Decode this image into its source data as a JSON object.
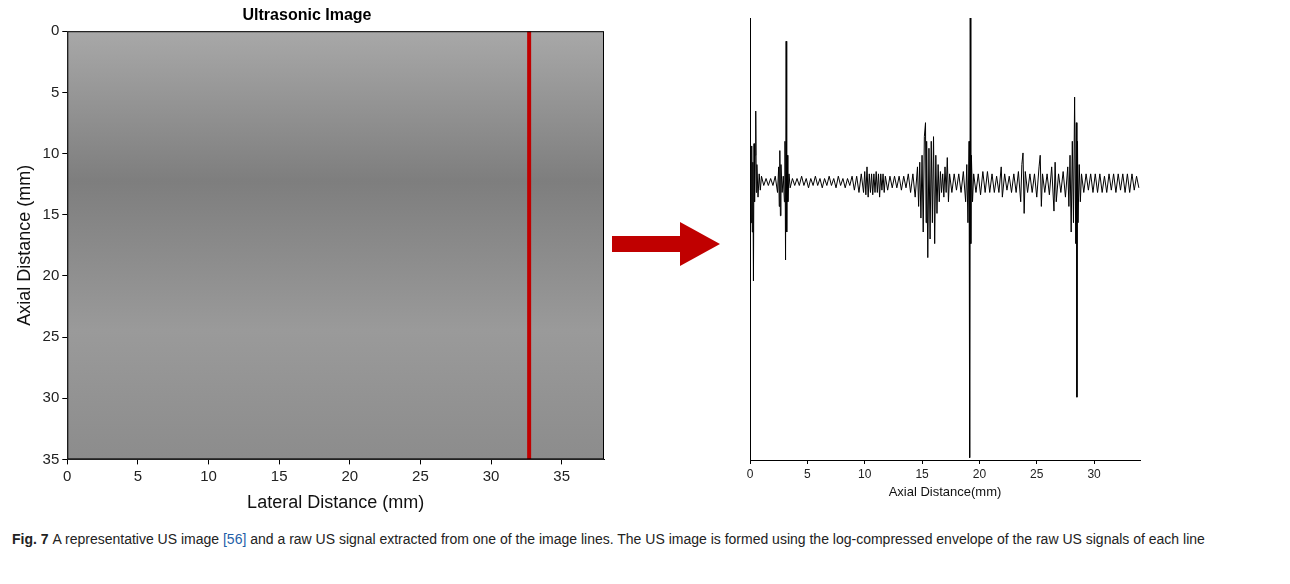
{
  "chart_data": [
    {
      "type": "image",
      "title": "Ultrasonic Image",
      "x_label": "Lateral Distance (mm)",
      "y_label": "Axial Distance (mm)",
      "xlim": [
        0,
        38
      ],
      "xticks": [
        0,
        5,
        10,
        15,
        20,
        25,
        30,
        35
      ],
      "ylim": [
        0,
        35
      ],
      "yticks": [
        0,
        5,
        10,
        15,
        20,
        25,
        30,
        35
      ],
      "scan_line_x": 32.7,
      "color": "#c00000",
      "grid": false
    },
    {
      "type": "line",
      "x_label": "Axial Distance(mm)",
      "color": "#000000",
      "grid": false,
      "tick_labels": "x",
      "xlim": [
        0,
        34
      ],
      "xticks": [
        0,
        5,
        10,
        15,
        20,
        25,
        30
      ],
      "ylim": [
        -1.2,
        0.7
      ],
      "x": [
        0.0,
        0.05,
        0.1,
        0.15,
        0.2,
        0.25,
        0.3,
        0.35,
        0.4,
        0.45,
        0.5,
        0.55,
        0.6,
        0.7,
        0.8,
        0.9,
        1.0,
        1.2,
        1.4,
        1.6,
        1.8,
        2.0,
        2.2,
        2.4,
        2.5,
        2.55,
        2.6,
        2.65,
        2.7,
        2.8,
        2.9,
        3.0,
        3.05,
        3.1,
        3.15,
        3.2,
        3.25,
        3.3,
        3.4,
        3.5,
        3.7,
        3.9,
        4.1,
        4.3,
        4.5,
        4.7,
        4.9,
        5.1,
        5.3,
        5.5,
        5.7,
        5.9,
        6.1,
        6.3,
        6.5,
        6.7,
        6.9,
        7.1,
        7.3,
        7.5,
        7.7,
        7.9,
        8.1,
        8.3,
        8.5,
        8.7,
        8.9,
        9.1,
        9.3,
        9.5,
        9.7,
        9.9,
        10.0,
        10.1,
        10.2,
        10.3,
        10.4,
        10.5,
        10.6,
        10.7,
        10.8,
        10.9,
        11.0,
        11.1,
        11.2,
        11.3,
        11.4,
        11.5,
        11.6,
        11.7,
        11.8,
        12.0,
        12.2,
        12.4,
        12.6,
        12.8,
        13.0,
        13.2,
        13.4,
        13.6,
        13.8,
        14.0,
        14.2,
        14.4,
        14.6,
        14.7,
        14.8,
        14.9,
        15.0,
        15.1,
        15.2,
        15.3,
        15.35,
        15.4,
        15.5,
        15.6,
        15.7,
        15.8,
        15.9,
        16.0,
        16.1,
        16.2,
        16.3,
        16.4,
        16.5,
        16.6,
        16.7,
        16.8,
        16.9,
        17.0,
        17.1,
        17.2,
        17.3,
        17.4,
        17.6,
        17.8,
        18.0,
        18.2,
        18.4,
        18.6,
        18.8,
        18.9,
        19.0,
        19.1,
        19.15,
        19.2,
        19.25,
        19.3,
        19.4,
        19.5,
        19.7,
        19.9,
        20.1,
        20.3,
        20.5,
        20.7,
        20.9,
        21.1,
        21.3,
        21.5,
        21.7,
        21.9,
        22.0,
        22.2,
        22.4,
        22.6,
        22.8,
        23.0,
        23.2,
        23.4,
        23.6,
        23.7,
        23.8,
        23.9,
        24.0,
        24.2,
        24.4,
        24.6,
        24.8,
        25.0,
        25.2,
        25.3,
        25.4,
        25.5,
        25.7,
        25.9,
        26.1,
        26.3,
        26.5,
        26.6,
        26.7,
        26.9,
        27.1,
        27.3,
        27.5,
        27.7,
        27.8,
        27.9,
        28.0,
        28.1,
        28.2,
        28.3,
        28.4,
        28.45,
        28.5,
        28.55,
        28.6,
        28.7,
        28.8,
        28.9,
        29.1,
        29.3,
        29.5,
        29.7,
        29.9,
        30.1,
        30.3,
        30.5,
        30.7,
        30.9,
        31.1,
        31.3,
        31.5,
        31.7,
        31.9,
        32.1,
        32.3,
        32.5,
        32.7,
        32.9,
        33.1,
        33.3,
        33.5,
        33.7,
        33.9
      ],
      "values": [
        -0.09,
        0.07,
        -0.18,
        0.15,
        -0.22,
        0.08,
        -0.43,
        0.16,
        -0.09,
        0.11,
        0.3,
        -0.05,
        0.07,
        -0.07,
        0.03,
        -0.04,
        0.02,
        -0.02,
        0.01,
        -0.02,
        0.01,
        -0.02,
        0.02,
        -0.05,
        0.06,
        -0.11,
        0.13,
        -0.15,
        0.07,
        -0.05,
        0.02,
        -0.09,
        0.17,
        -0.34,
        0.6,
        -0.22,
        0.11,
        -0.09,
        0.03,
        -0.03,
        0.01,
        -0.02,
        0.01,
        -0.02,
        0.02,
        -0.02,
        0.01,
        -0.03,
        0.01,
        -0.02,
        0.02,
        -0.02,
        0.01,
        -0.03,
        0.01,
        -0.02,
        0.02,
        -0.02,
        0.01,
        -0.03,
        0.02,
        -0.02,
        0.01,
        -0.03,
        0.01,
        -0.02,
        0.02,
        -0.04,
        0.02,
        -0.05,
        0.03,
        -0.05,
        0.04,
        -0.06,
        0.06,
        -0.07,
        0.03,
        -0.05,
        0.03,
        -0.06,
        0.03,
        -0.05,
        0.04,
        -0.05,
        0.03,
        -0.07,
        0.03,
        -0.04,
        0.03,
        -0.05,
        0.02,
        -0.04,
        0.02,
        -0.03,
        0.02,
        -0.03,
        0.02,
        -0.04,
        0.02,
        -0.03,
        0.03,
        -0.05,
        0.03,
        -0.07,
        0.06,
        -0.11,
        0.08,
        -0.16,
        0.11,
        -0.22,
        0.19,
        0.25,
        -0.18,
        0.17,
        -0.33,
        0.14,
        -0.25,
        0.17,
        -0.18,
        0.19,
        -0.27,
        0.11,
        -0.14,
        0.07,
        -0.09,
        0.04,
        -0.05,
        0.03,
        -0.07,
        0.06,
        -0.05,
        0.1,
        -0.09,
        0.03,
        -0.05,
        0.03,
        -0.04,
        0.03,
        -0.05,
        0.04,
        -0.09,
        0.07,
        -0.18,
        0.17,
        -1.19,
        0.7,
        -0.27,
        0.11,
        -0.09,
        0.03,
        -0.05,
        0.03,
        -0.06,
        0.04,
        -0.05,
        0.04,
        -0.05,
        0.03,
        -0.05,
        0.02,
        -0.05,
        0.06,
        -0.07,
        0.03,
        -0.04,
        0.02,
        -0.05,
        0.03,
        -0.05,
        0.04,
        -0.09,
        0.07,
        0.12,
        -0.14,
        0.04,
        -0.05,
        0.03,
        -0.05,
        0.03,
        -0.07,
        0.06,
        0.11,
        -0.11,
        0.03,
        -0.05,
        0.03,
        -0.06,
        0.06,
        -0.13,
        0.08,
        -0.09,
        0.03,
        -0.05,
        0.04,
        -0.07,
        0.06,
        -0.11,
        0.11,
        -0.22,
        0.17,
        -0.18,
        0.36,
        -0.27,
        0.25,
        -0.93,
        0.17,
        -0.18,
        0.07,
        -0.09,
        0.03,
        -0.05,
        0.03,
        -0.04,
        0.03,
        -0.05,
        0.03,
        -0.05,
        0.03,
        -0.05,
        0.02,
        -0.05,
        0.03,
        -0.04,
        0.03,
        -0.05,
        0.03,
        -0.04,
        0.03,
        -0.05,
        0.03,
        -0.05,
        0.03,
        -0.04,
        0.02,
        -0.03
      ]
    }
  ],
  "caption": {
    "label": "Fig. 7",
    "before": "A representative US image ",
    "ref": "[56]",
    "after": " and a raw US signal extracted from one of the image lines. The US image is formed using the log-compressed envelope of the raw US signals of each line"
  }
}
